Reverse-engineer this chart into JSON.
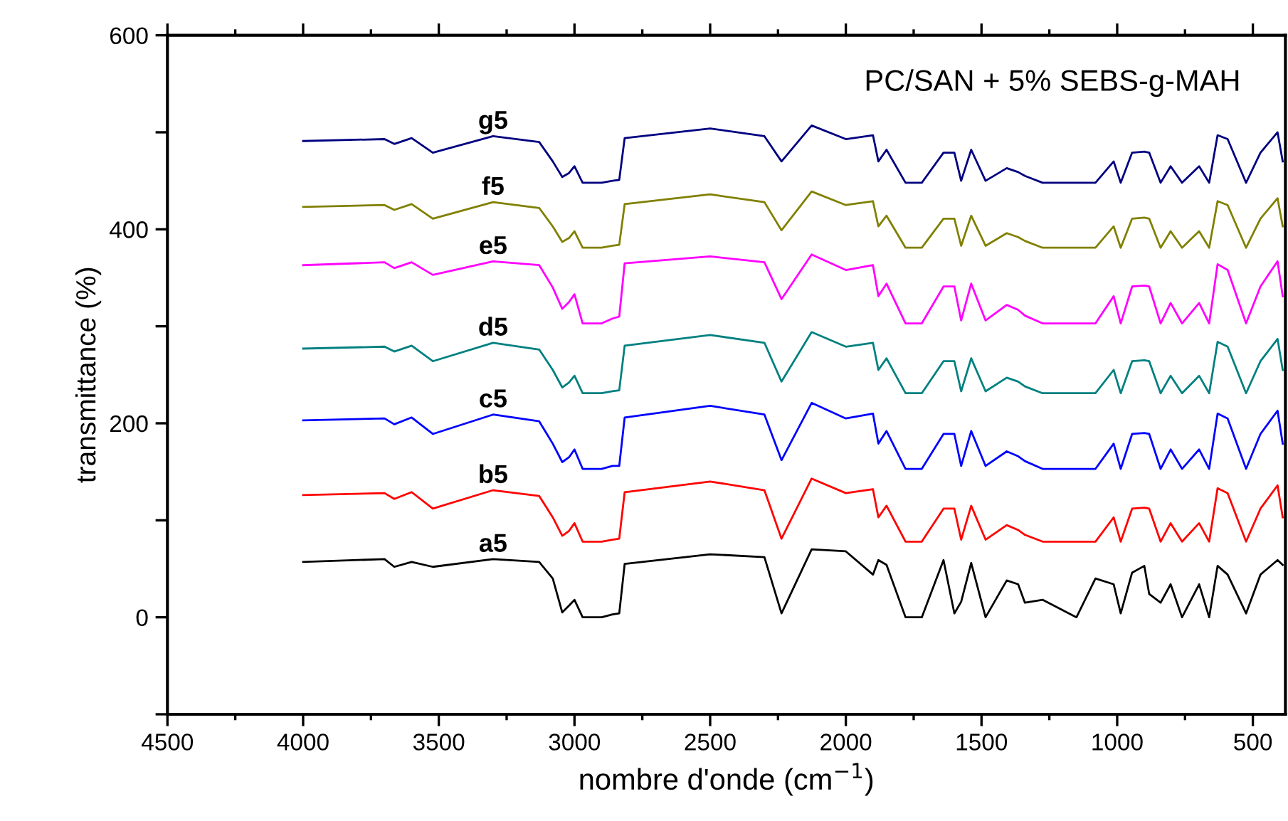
{
  "chart_data": {
    "type": "line",
    "title": "PC/SAN + 5% SEBS-g-MAH",
    "xlabel": "nombre d'onde (cm$^{−1}$)",
    "ylabel": "transmittance (%)",
    "x": [
      4000,
      3700,
      3664,
      3600,
      3522,
      3300,
      3130,
      3080,
      3045,
      3020,
      3000,
      2970,
      2900,
      2860,
      2835,
      2815,
      2500,
      2300,
      2237,
      2126,
      2000,
      1900,
      1880,
      1850,
      1780,
      1720,
      1640,
      1600,
      1575,
      1538,
      1485,
      1407,
      1365,
      1340,
      1275,
      1150,
      1080,
      1013,
      987,
      945,
      900,
      882,
      840,
      803,
      761,
      698,
      661,
      630,
      593,
      525,
      472,
      409,
      390
    ],
    "series": [
      {
        "name": "a5",
        "color": "#000000",
        "values": [
          57,
          60,
          52,
          57,
          52,
          60,
          57,
          40,
          5,
          12,
          18,
          0,
          0,
          3,
          4,
          55,
          65,
          62,
          4,
          70,
          68,
          44,
          59,
          54,
          0,
          0,
          59,
          4,
          16,
          56,
          0,
          38,
          34,
          15,
          18,
          0,
          40,
          34,
          4,
          46,
          53,
          24,
          15,
          34,
          0,
          34,
          0,
          53,
          44,
          4,
          44,
          59,
          54
        ]
      },
      {
        "name": "b5",
        "color": "#ff0000",
        "values": [
          126,
          128,
          122,
          129,
          112,
          131,
          125,
          103,
          84,
          89,
          97,
          78,
          78,
          80,
          81,
          129,
          140,
          131,
          81,
          143,
          128,
          132,
          103,
          115,
          78,
          78,
          112,
          112,
          80,
          115,
          80,
          95,
          90,
          85,
          78,
          78,
          78,
          103,
          78,
          112,
          113,
          112,
          78,
          97,
          78,
          97,
          78,
          133,
          128,
          78,
          112,
          136,
          103
        ]
      },
      {
        "name": "c5",
        "color": "#0000ff",
        "values": [
          203,
          205,
          199,
          206,
          189,
          209,
          202,
          179,
          160,
          165,
          173,
          153,
          153,
          156,
          156,
          206,
          218,
          209,
          162,
          221,
          205,
          210,
          179,
          192,
          153,
          153,
          189,
          189,
          156,
          192,
          156,
          171,
          166,
          161,
          153,
          153,
          153,
          179,
          153,
          189,
          190,
          189,
          153,
          173,
          153,
          173,
          153,
          210,
          205,
          153,
          189,
          213,
          179
        ]
      },
      {
        "name": "d5",
        "color": "#008080",
        "values": [
          277,
          279,
          274,
          280,
          264,
          283,
          276,
          255,
          237,
          242,
          249,
          231,
          231,
          233,
          234,
          280,
          291,
          283,
          243,
          294,
          279,
          283,
          255,
          267,
          231,
          231,
          264,
          264,
          233,
          267,
          233,
          247,
          243,
          238,
          231,
          231,
          231,
          255,
          231,
          264,
          265,
          264,
          231,
          249,
          231,
          249,
          231,
          284,
          279,
          231,
          264,
          287,
          255
        ]
      },
      {
        "name": "e5",
        "color": "#ff00ff",
        "values": [
          363,
          366,
          360,
          366,
          353,
          367,
          363,
          340,
          318,
          325,
          333,
          303,
          303,
          308,
          310,
          365,
          372,
          366,
          328,
          374,
          358,
          363,
          331,
          344,
          303,
          303,
          341,
          341,
          306,
          344,
          306,
          322,
          317,
          311,
          303,
          303,
          303,
          331,
          303,
          341,
          342,
          341,
          303,
          324,
          303,
          324,
          303,
          364,
          358,
          303,
          341,
          367,
          331
        ]
      },
      {
        "name": "f5",
        "color": "#808000",
        "values": [
          423,
          425,
          420,
          426,
          411,
          428,
          422,
          403,
          387,
          391,
          398,
          381,
          381,
          383,
          384,
          426,
          436,
          428,
          399,
          439,
          425,
          429,
          403,
          414,
          381,
          381,
          411,
          411,
          383,
          414,
          383,
          396,
          392,
          388,
          381,
          381,
          381,
          403,
          381,
          411,
          412,
          411,
          381,
          398,
          381,
          398,
          381,
          429,
          425,
          381,
          411,
          432,
          403
        ]
      },
      {
        "name": "g5",
        "color": "#000080",
        "values": [
          491,
          493,
          488,
          494,
          479,
          496,
          490,
          470,
          454,
          458,
          465,
          448,
          448,
          450,
          451,
          494,
          504,
          496,
          470,
          507,
          493,
          497,
          470,
          482,
          448,
          448,
          479,
          479,
          450,
          482,
          450,
          463,
          459,
          455,
          448,
          448,
          448,
          470,
          448,
          479,
          480,
          479,
          448,
          465,
          448,
          465,
          448,
          497,
          493,
          448,
          479,
          500,
          470
        ]
      }
    ],
    "xlim": [
      4500,
      380
    ],
    "ylim": [
      -100,
      600
    ],
    "xticks": [
      4500,
      {
        "value": 4250,
        "label": null
      },
      4000,
      {
        "value": 3750,
        "label": null
      },
      3500,
      {
        "value": 3250,
        "label": null
      },
      3000,
      {
        "value": 2750,
        "label": null
      },
      2500,
      {
        "value": 2250,
        "label": null
      },
      2000,
      {
        "value": 1750,
        "label": null
      },
      1500,
      {
        "value": 1250,
        "label": null
      },
      1000,
      {
        "value": 750,
        "label": null
      },
      500
    ],
    "yticks": [
      {
        "value": -100,
        "label": null
      },
      0,
      {
        "value": 100,
        "label": null
      },
      200,
      {
        "value": 300,
        "label": null
      },
      400,
      {
        "value": 500,
        "label": null
      },
      600
    ],
    "grid": false,
    "legend": false
  }
}
